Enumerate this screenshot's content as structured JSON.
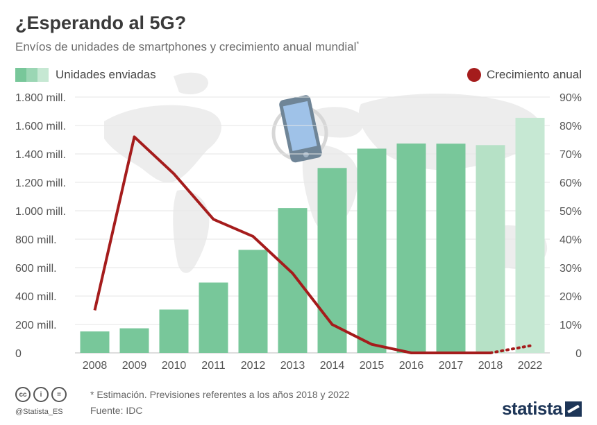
{
  "title": "¿Esperando al 5G?",
  "subtitle": "Envíos de unidades de smartphones y crecimiento anual mundial",
  "subtitle_mark": "*",
  "legend": {
    "units_label": "Unidades enviadas",
    "growth_label": "Crecimiento anual"
  },
  "footer": {
    "note": "* Estimación. Previsiones referentes a los años 2018 y 2022",
    "source": "Fuente: IDC",
    "handle": "@Statista_ES",
    "brand": "statista"
  },
  "colors": {
    "bar": "#78c79a",
    "bar_forecast": "#b6e1c6",
    "bar_forecast_2022": "#c6e8d3",
    "line": "#a51c1c",
    "axis_text": "#555555",
    "map": "#ededed"
  },
  "icons": [
    "smartphone-icon",
    "cc-icon",
    "by-icon",
    "nd-icon",
    "statista-logo-icon"
  ],
  "chart_data": {
    "type": "bar",
    "categories": [
      "2008",
      "2009",
      "2010",
      "2011",
      "2012",
      "2013",
      "2014",
      "2015",
      "2016",
      "2017",
      "2018",
      "2022"
    ],
    "series": [
      {
        "name": "Unidades enviadas",
        "type": "bar",
        "axis": "left",
        "values": [
          151,
          173,
          305,
          495,
          725,
          1019,
          1301,
          1437,
          1473,
          1472,
          1462,
          1654
        ],
        "forecast": [
          false,
          false,
          false,
          false,
          false,
          false,
          false,
          false,
          false,
          false,
          true,
          true
        ]
      },
      {
        "name": "Crecimiento anual",
        "type": "line",
        "axis": "right",
        "values": [
          15,
          76,
          63,
          47,
          41,
          28,
          10,
          3,
          0,
          0,
          0,
          2.5
        ],
        "forecast": [
          false,
          false,
          false,
          false,
          false,
          false,
          false,
          false,
          false,
          false,
          true,
          true
        ]
      }
    ],
    "y_left": {
      "ticks": [
        0,
        200,
        400,
        600,
        800,
        1000,
        1200,
        1400,
        1600,
        1800
      ],
      "tick_labels": [
        "0",
        "200 mill.",
        "400 mill.",
        "600 mill.",
        "800 mill.",
        "1.000 mill.",
        "1.200 mill.",
        "1.400 mill.",
        "1.600 mill.",
        "1.800 mill."
      ],
      "range": [
        0,
        1800
      ]
    },
    "y_right": {
      "ticks": [
        0,
        10,
        20,
        30,
        40,
        50,
        60,
        70,
        80,
        90
      ],
      "tick_labels": [
        "0",
        "10%",
        "20%",
        "30%",
        "40%",
        "50%",
        "60%",
        "70%",
        "80%",
        "90%"
      ],
      "range": [
        0,
        90
      ]
    },
    "grid": true,
    "legend_position": "top"
  }
}
